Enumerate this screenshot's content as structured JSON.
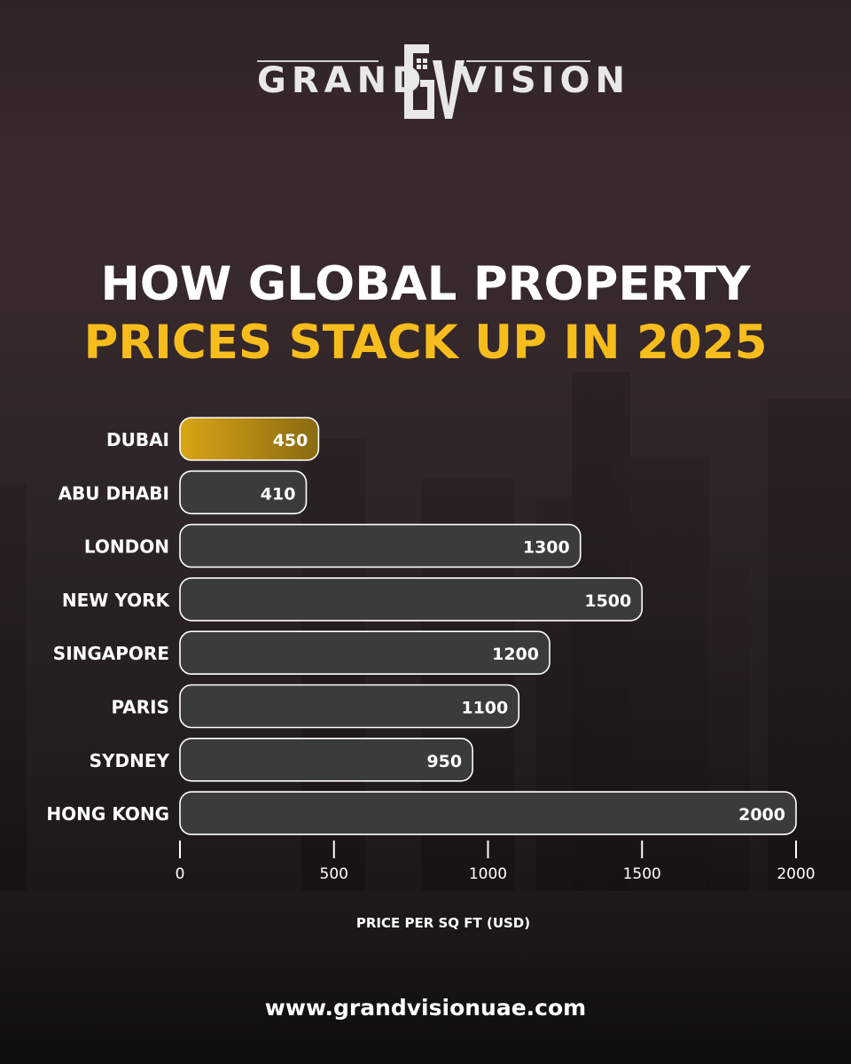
{
  "brand": {
    "left_word": "GRAND",
    "right_word": "VISION",
    "monogram": "GV"
  },
  "headline": {
    "line1": "HOW GLOBAL PROPERTY",
    "line2": "PRICES STACK UP IN 2025"
  },
  "colors": {
    "headline_main": "#ffffff",
    "headline_accent": "#f7bd1d",
    "bar_default": "#3c3b3c",
    "bar_highlight": "#d9a514",
    "bar_outline": "#ffffff"
  },
  "chart_data": {
    "type": "bar",
    "orientation": "horizontal",
    "categories": [
      "DUBAI",
      "ABU DHABI",
      "LONDON",
      "NEW YORK",
      "SINGAPORE",
      "PARIS",
      "SYDNEY",
      "HONG KONG"
    ],
    "values": [
      450,
      410,
      1300,
      1500,
      1200,
      1100,
      950,
      2000
    ],
    "highlight_category": "DUBAI",
    "xlabel": "PRICE PER SQ FT (USD)",
    "xlim": [
      0,
      2000
    ],
    "xticks": [
      0,
      500,
      1000,
      1500,
      2000
    ],
    "grid": false,
    "legend": "none"
  },
  "footer": {
    "website": "www.grandvisionuae.com"
  }
}
